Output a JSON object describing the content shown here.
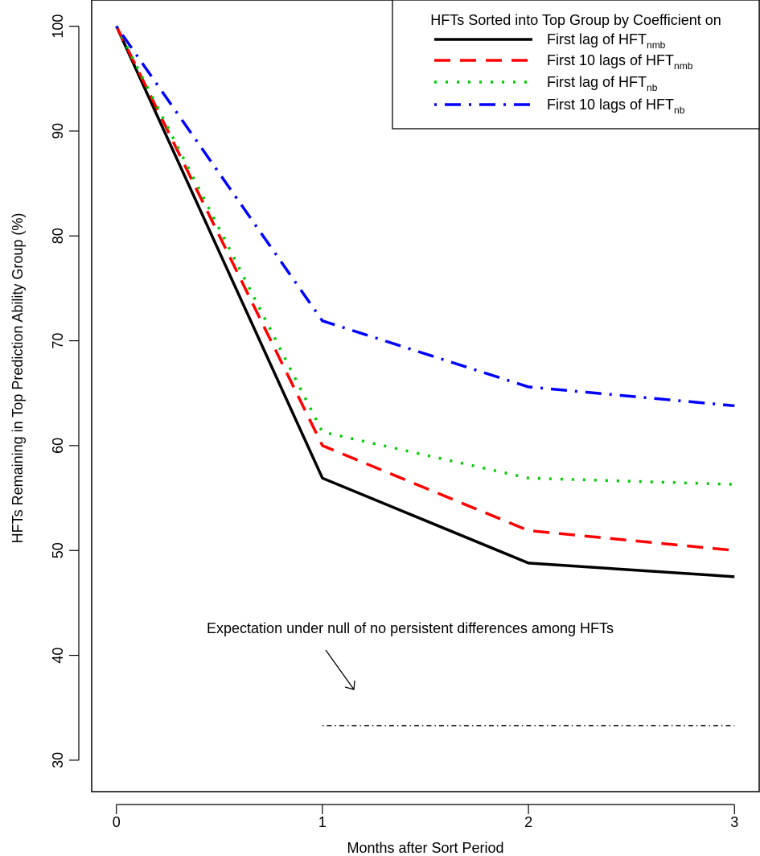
{
  "chart_data": {
    "type": "line",
    "title": "",
    "xlabel": "Months after Sort Period",
    "ylabel": "HFTs Remaining in Top Prediction Ability Group (%)",
    "x": [
      0,
      1,
      2,
      3
    ],
    "x_ticks": [
      "0",
      "1",
      "2",
      "3"
    ],
    "xlim": [
      -0.12,
      3.12
    ],
    "y_ticks": [
      "30",
      "40",
      "50",
      "60",
      "70",
      "80",
      "90",
      "100"
    ],
    "ylim": [
      27,
      102.5
    ],
    "grid": false,
    "legend": {
      "title": "HFTs Sorted into Top Group by Coefficient on",
      "placement": "top-right"
    },
    "series": [
      {
        "name_main": "First lag of HFT",
        "name_sub": "nmb",
        "values": [
          100,
          56.9,
          48.8,
          47.5
        ],
        "color": "#000000",
        "dash": "solid"
      },
      {
        "name_main": "First 10 lags of HFT",
        "name_sub": "nmb",
        "values": [
          100,
          60.0,
          51.9,
          50.0
        ],
        "color": "#ff0000",
        "dash": "dashed"
      },
      {
        "name_main": "First lag of HFT",
        "name_sub": "nb",
        "values": [
          100,
          61.3,
          56.9,
          56.3
        ],
        "color": "#00cd00",
        "dash": "dotted"
      },
      {
        "name_main": "First 10 lags of HFT",
        "name_sub": "nb",
        "values": [
          100,
          71.9,
          65.6,
          63.8
        ],
        "color": "#0000ff",
        "dash": "dotdash"
      }
    ],
    "reference_line": {
      "x": [
        1,
        3
      ],
      "y": 33.3,
      "color": "#000000",
      "dash": "dotdash"
    },
    "annotation": {
      "text": "Expectation under null of no persistent differences among HFTs"
    }
  }
}
